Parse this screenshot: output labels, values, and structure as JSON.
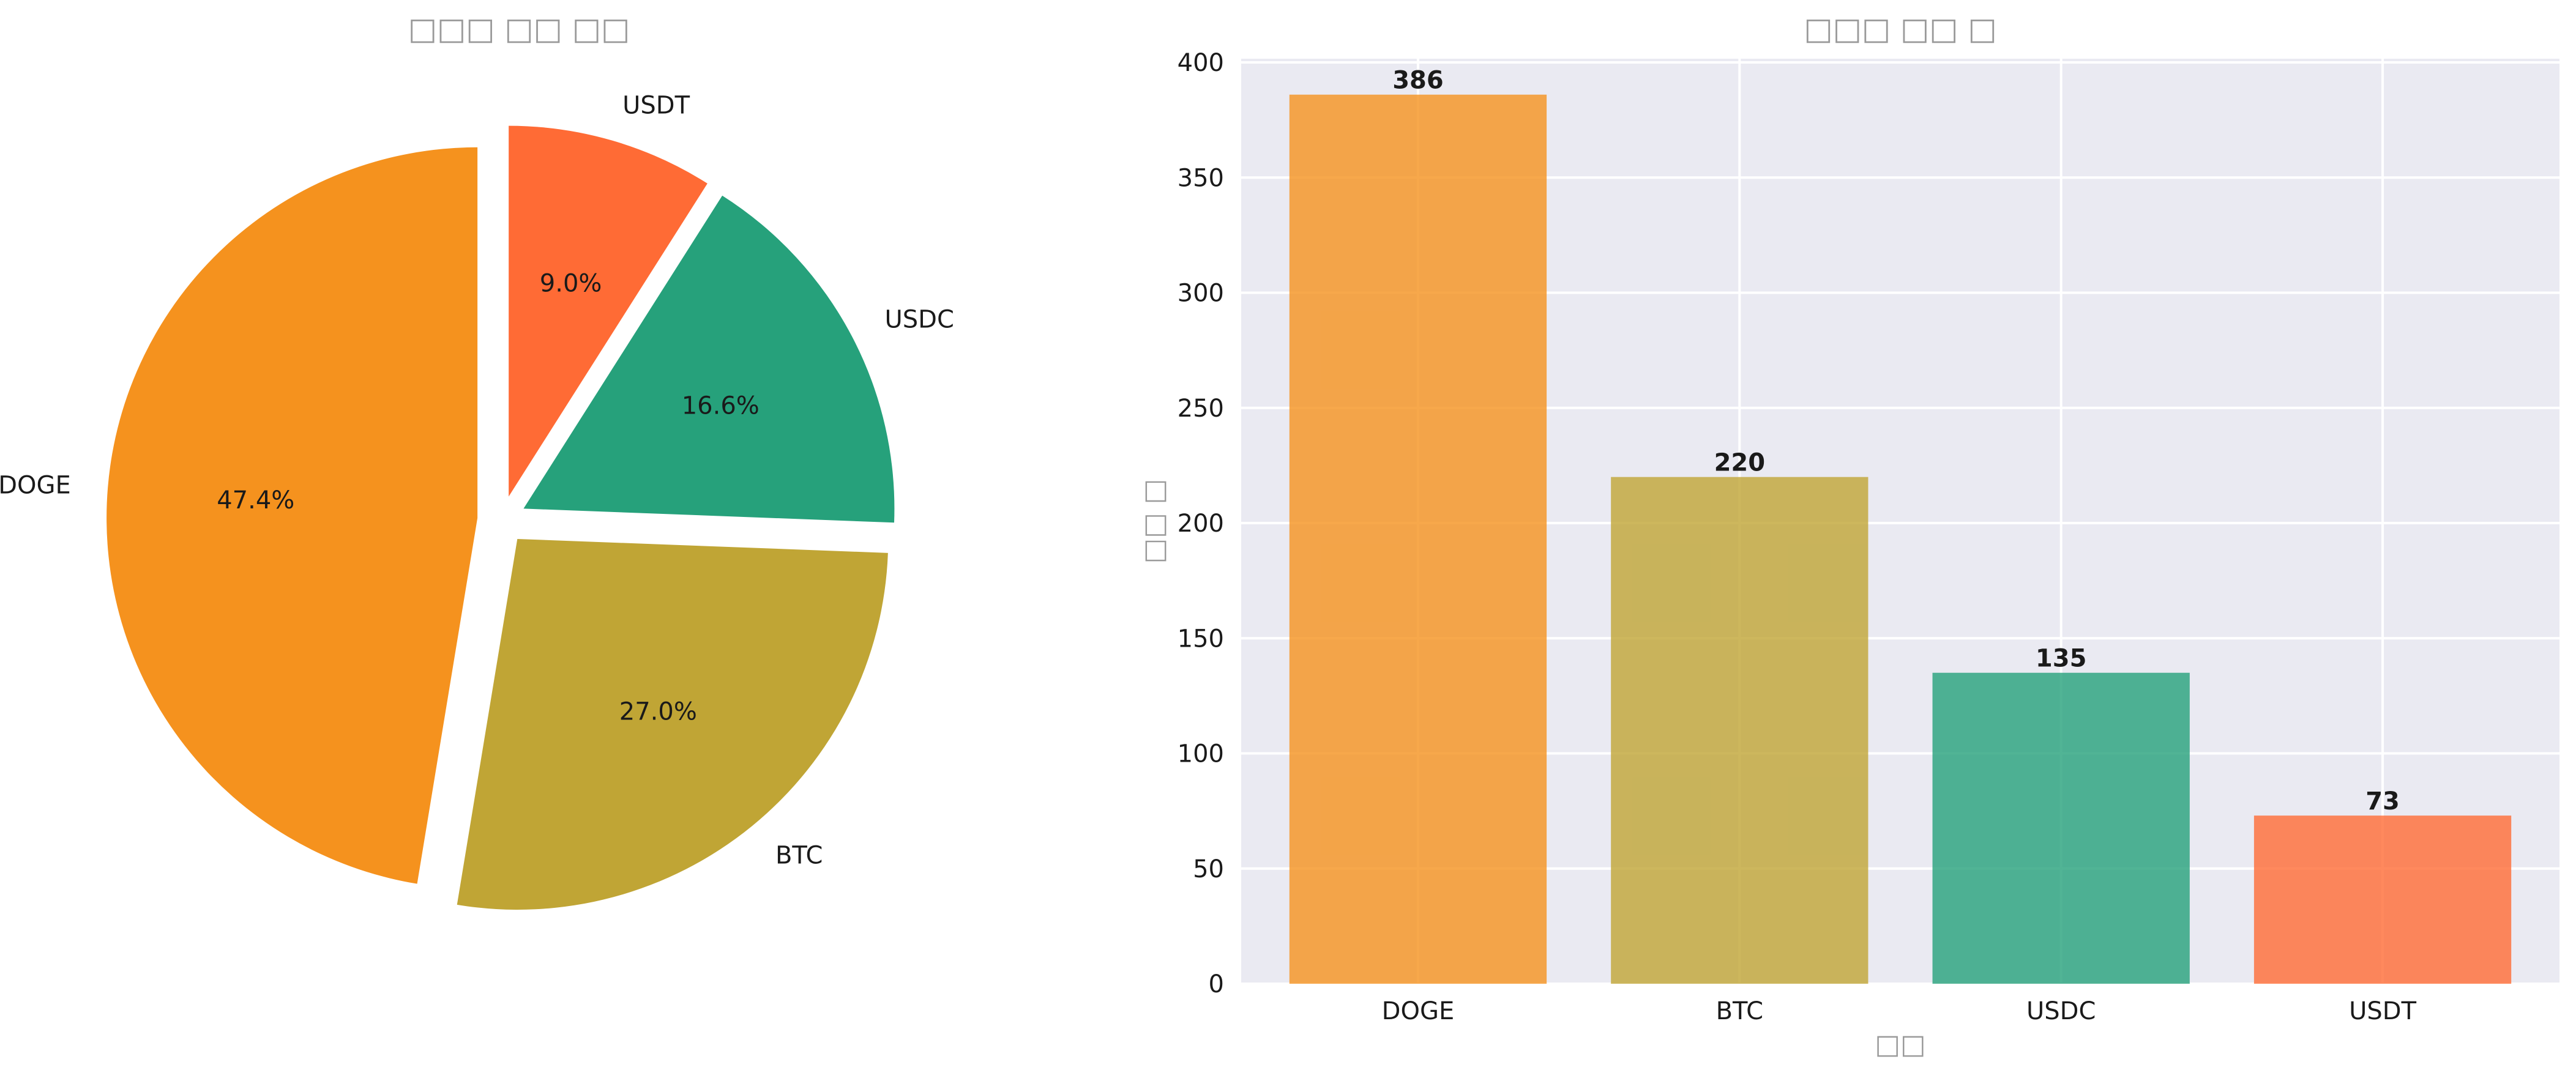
{
  "chart_data": [
    {
      "type": "pie",
      "title": "□□□ □□ □□",
      "categories": [
        "DOGE",
        "BTC",
        "USDC",
        "USDT"
      ],
      "values": [
        47.4,
        27.0,
        16.6,
        9.0
      ],
      "percent_labels": [
        "47.4%",
        "27.0%",
        "16.6%",
        "9.0%"
      ],
      "colors": [
        "#F5921E",
        "#C0A535",
        "#26A17B",
        "#FF6B35"
      ],
      "start_angle_deg": 90,
      "direction": "counterclockwise",
      "exploded": true
    },
    {
      "type": "bar",
      "title": "□□□ □□ □",
      "xlabel": "□□",
      "ylabel": "□□ □",
      "categories": [
        "DOGE",
        "BTC",
        "USDC",
        "USDT"
      ],
      "values": [
        386,
        220,
        135,
        73
      ],
      "value_labels": [
        "386",
        "220",
        "135",
        "73"
      ],
      "colors": [
        "#F5921E",
        "#C0A535",
        "#26A17B",
        "#FF6B35"
      ],
      "ylim": [
        0,
        400
      ],
      "yticks": [
        0,
        50,
        100,
        150,
        200,
        250,
        300,
        350,
        400
      ],
      "ytick_labels": [
        "0",
        "50",
        "100",
        "150",
        "200",
        "250",
        "300",
        "350",
        "400"
      ],
      "grid": true,
      "background": "#EAEAF2"
    }
  ]
}
